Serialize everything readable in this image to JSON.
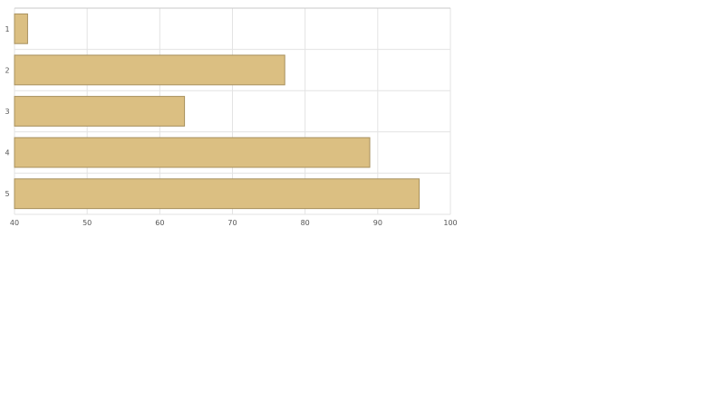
{
  "chart_data": {
    "type": "bar",
    "orientation": "horizontal",
    "categories": [
      "1",
      "2",
      "3",
      "4",
      "5"
    ],
    "values": [
      41.8,
      77.2,
      63.4,
      88.9,
      95.7
    ],
    "xlim": [
      40,
      100
    ],
    "xticks": [
      "40",
      "50",
      "60",
      "70",
      "80",
      "90",
      "100"
    ],
    "title": "",
    "xlabel": "",
    "ylabel": "",
    "grid": true,
    "legend": "none",
    "bar_color": "#dbbf82",
    "bar_stroke": "#a8915e"
  }
}
